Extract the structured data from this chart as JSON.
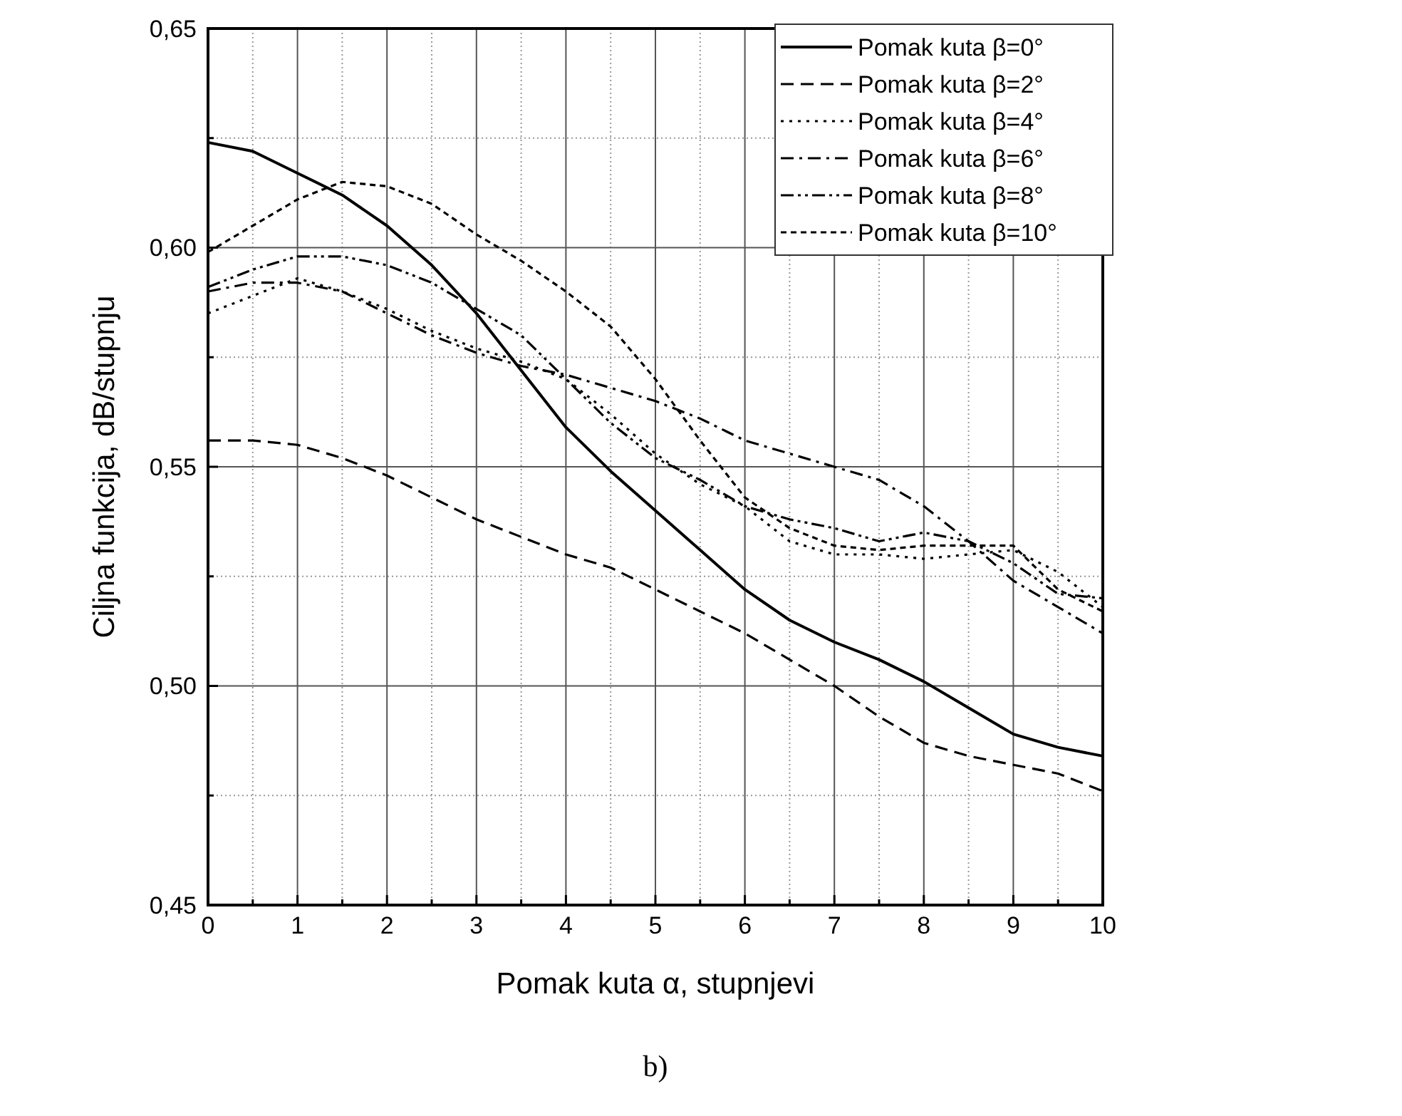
{
  "chart_data": {
    "type": "line",
    "xlabel": "Pomak kuta α, stupnjevi",
    "ylabel": "Ciljna funkcija, dB/stupnju",
    "annotations": [
      "b)"
    ],
    "x": [
      0,
      0.5,
      1,
      1.5,
      2,
      2.5,
      3,
      3.5,
      4,
      4.5,
      5,
      5.5,
      6,
      6.5,
      7,
      7.5,
      8,
      8.5,
      9,
      9.5,
      10
    ],
    "series": [
      {
        "name": "Pomak kuta β=0°",
        "color": "#000000",
        "line_style": "solid",
        "values": [
          0.624,
          0.622,
          0.617,
          0.612,
          0.605,
          0.596,
          0.585,
          0.572,
          0.559,
          0.549,
          0.54,
          0.531,
          0.522,
          0.515,
          0.51,
          0.506,
          0.501,
          0.495,
          0.489,
          0.486,
          0.484
        ]
      },
      {
        "name": "Pomak kuta β=2°",
        "color": "#000000",
        "line_style": "dashed",
        "values": [
          0.556,
          0.556,
          0.555,
          0.552,
          0.548,
          0.543,
          0.538,
          0.534,
          0.53,
          0.527,
          0.522,
          0.517,
          0.512,
          0.506,
          0.5,
          0.493,
          0.487,
          0.484,
          0.482,
          0.48,
          0.476
        ]
      },
      {
        "name": "Pomak kuta β=4°",
        "color": "#000000",
        "line_style": "dotted",
        "values": [
          0.585,
          0.589,
          0.593,
          0.59,
          0.586,
          0.581,
          0.577,
          0.574,
          0.57,
          0.562,
          0.553,
          0.546,
          0.541,
          0.533,
          0.53,
          0.53,
          0.529,
          0.53,
          0.531,
          0.526,
          0.518
        ]
      },
      {
        "name": "Pomak kuta β=6°",
        "color": "#000000",
        "line_style": "dashdot",
        "values": [
          0.59,
          0.592,
          0.592,
          0.59,
          0.585,
          0.58,
          0.576,
          0.573,
          0.571,
          0.568,
          0.565,
          0.561,
          0.556,
          0.553,
          0.55,
          0.547,
          0.541,
          0.533,
          0.524,
          0.518,
          0.512
        ]
      },
      {
        "name": "Pomak kuta β=8°",
        "color": "#000000",
        "line_style": "dashdotdot",
        "values": [
          0.591,
          0.595,
          0.598,
          0.598,
          0.596,
          0.592,
          0.586,
          0.58,
          0.57,
          0.56,
          0.552,
          0.547,
          0.541,
          0.538,
          0.536,
          0.533,
          0.535,
          0.533,
          0.528,
          0.521,
          0.52
        ]
      },
      {
        "name": "Pomak kuta β=10°",
        "color": "#000000",
        "line_style": "shortdash",
        "values": [
          0.599,
          0.605,
          0.611,
          0.615,
          0.614,
          0.61,
          0.603,
          0.597,
          0.59,
          0.582,
          0.57,
          0.556,
          0.543,
          0.536,
          0.532,
          0.531,
          0.532,
          0.532,
          0.532,
          0.522,
          0.517
        ]
      }
    ],
    "xlim": [
      0,
      10
    ],
    "ylim": [
      0.45,
      0.65
    ],
    "xticks": [
      0,
      {
        "value": 0.5,
        "label": null
      },
      1,
      {
        "value": 1.5,
        "label": null
      },
      2,
      {
        "value": 2.5,
        "label": null
      },
      3,
      {
        "value": 3.5,
        "label": null
      },
      4,
      {
        "value": 4.5,
        "label": null
      },
      5,
      {
        "value": 5.5,
        "label": null
      },
      6,
      {
        "value": 6.5,
        "label": null
      },
      7,
      {
        "value": 7.5,
        "label": null
      },
      8,
      {
        "value": 8.5,
        "label": null
      },
      9,
      {
        "value": 9.5,
        "label": null
      },
      10
    ],
    "yticks": [
      {
        "value": 0.45,
        "label": "0,45"
      },
      {
        "value": 0.475,
        "label": null
      },
      {
        "value": 0.5,
        "label": "0,50"
      },
      {
        "value": 0.525,
        "label": null
      },
      {
        "value": 0.55,
        "label": "0,55"
      },
      {
        "value": 0.575,
        "label": null
      },
      {
        "value": 0.6,
        "label": "0,60"
      },
      {
        "value": 0.625,
        "label": null
      },
      {
        "value": 0.65,
        "label": "0,65"
      }
    ],
    "grid": true,
    "legend": "top right",
    "marker": "none"
  }
}
